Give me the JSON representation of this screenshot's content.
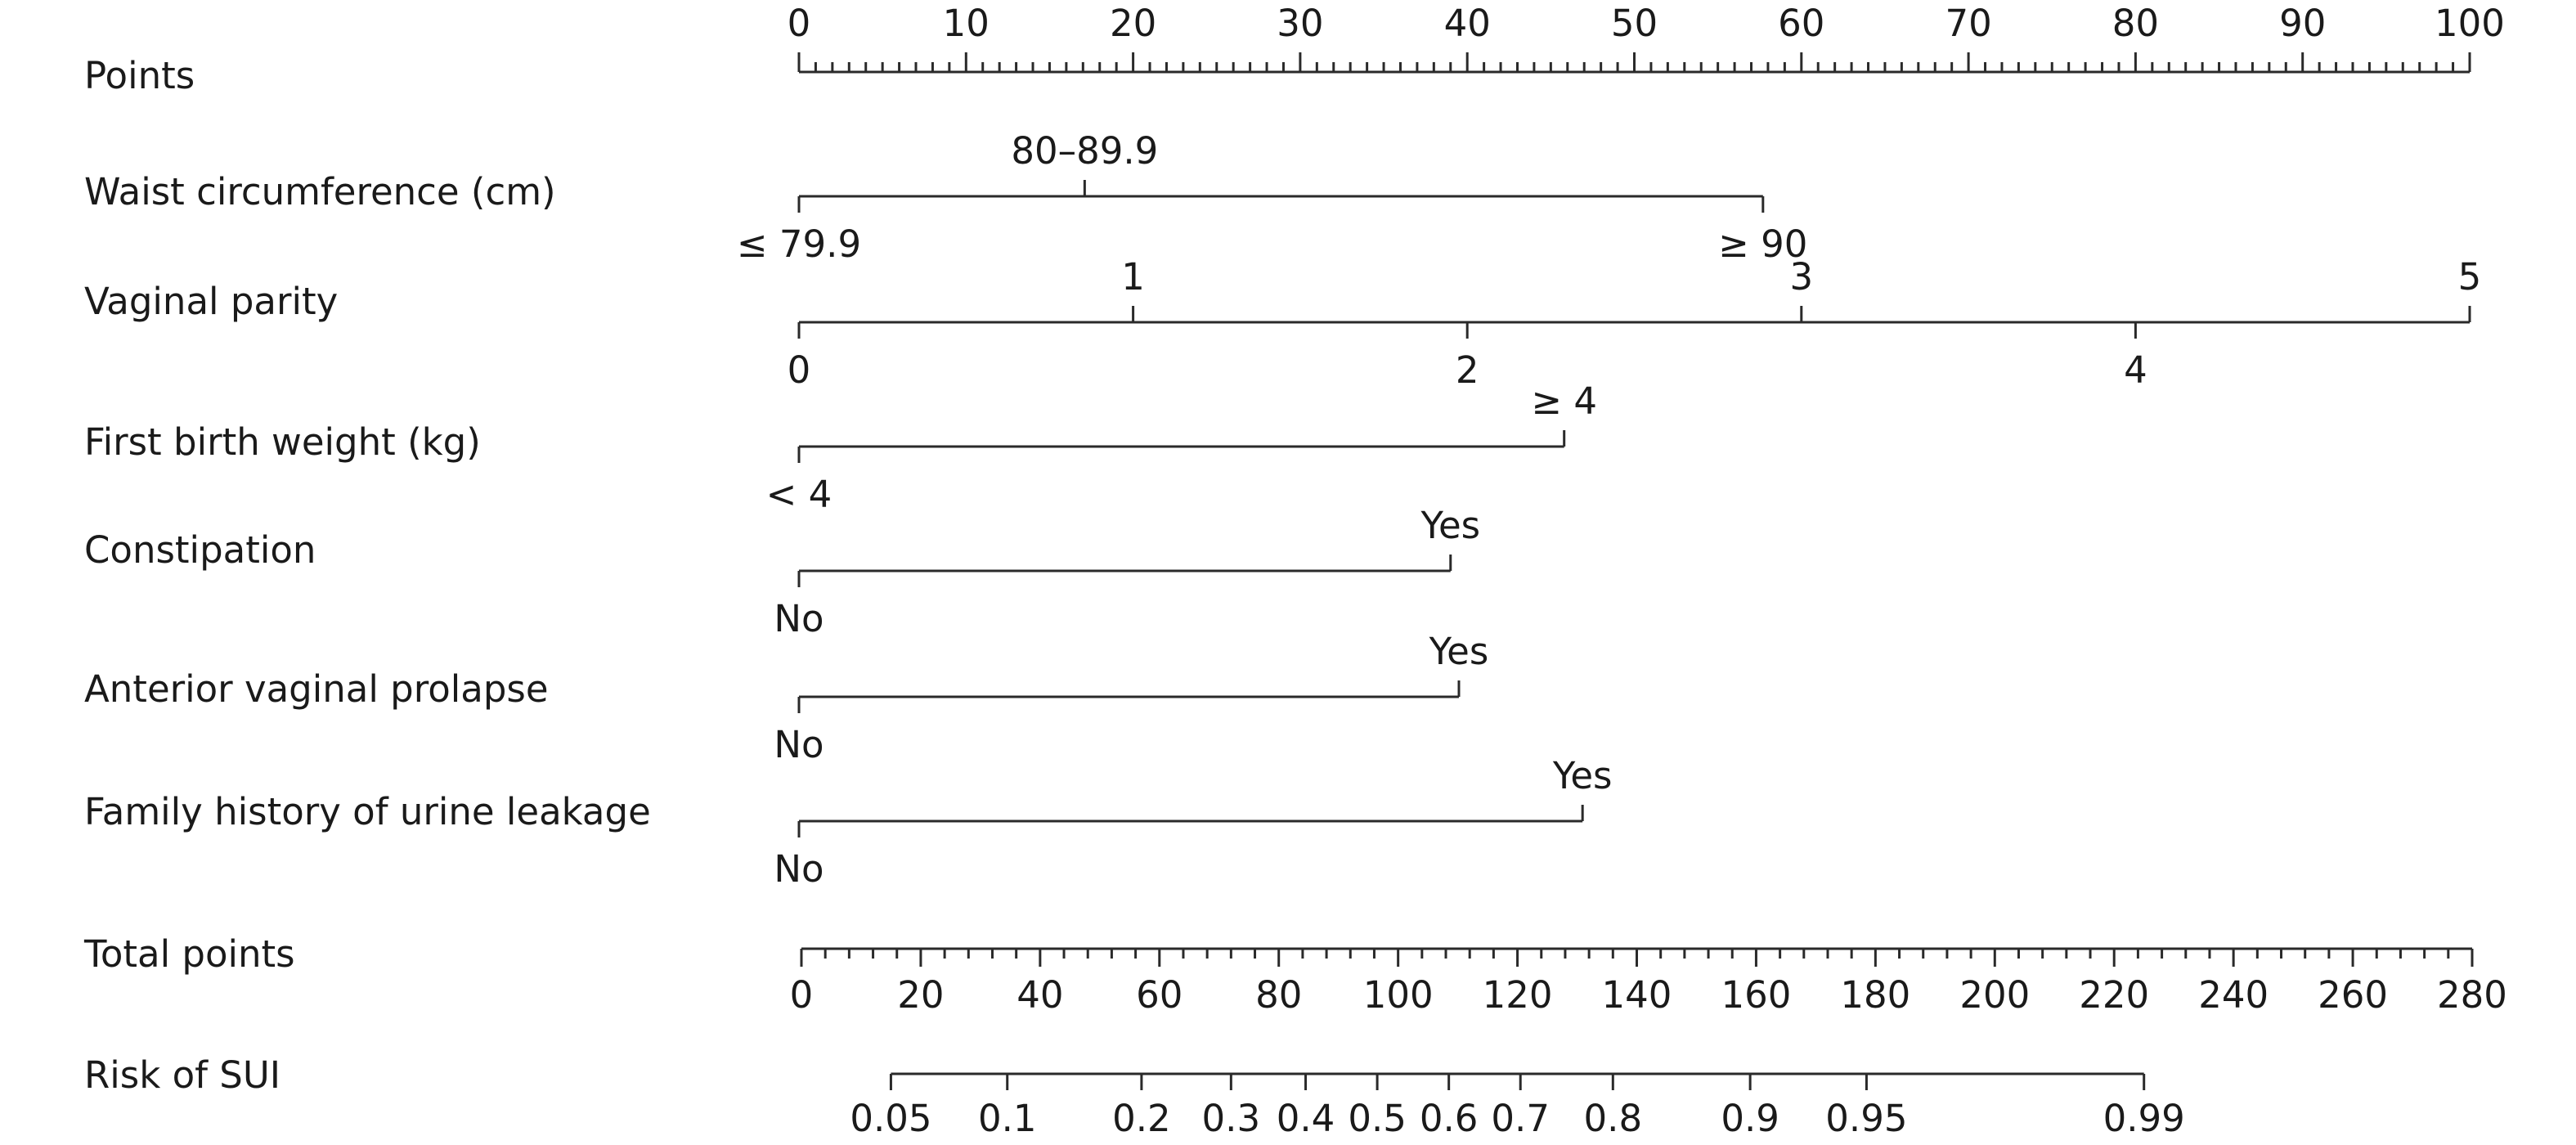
{
  "chart_data": {
    "type": "nomogram",
    "rows": [
      {
        "label": "Points",
        "kind": "points-scale",
        "major_ticks": [
          0,
          10,
          20,
          30,
          40,
          50,
          60,
          70,
          80,
          90,
          100
        ],
        "labels": [
          "0",
          "10",
          "20",
          "30",
          "40",
          "50",
          "60",
          "70",
          "80",
          "90",
          "100"
        ]
      },
      {
        "label": "Waist circumference (cm)",
        "kind": "factor",
        "levels": [
          {
            "label": "≤ 79.9",
            "points": 0,
            "side": "below"
          },
          {
            "label": "80–89.9",
            "points": 17.1,
            "side": "above"
          },
          {
            "label": "≥ 90",
            "points": 57.7,
            "side": "below"
          }
        ]
      },
      {
        "label": "Vaginal parity",
        "kind": "factor",
        "levels": [
          {
            "label": "0",
            "points": 0,
            "side": "below"
          },
          {
            "label": "1",
            "points": 20,
            "side": "above"
          },
          {
            "label": "2",
            "points": 40,
            "side": "below"
          },
          {
            "label": "3",
            "points": 60,
            "side": "above"
          },
          {
            "label": "4",
            "points": 80,
            "side": "below"
          },
          {
            "label": "5",
            "points": 100,
            "side": "above"
          }
        ]
      },
      {
        "label": "First birth weight (kg)",
        "kind": "factor",
        "levels": [
          {
            "label": "< 4",
            "points": 0,
            "side": "below"
          },
          {
            "label": "≥ 4",
            "points": 45.8,
            "side": "above"
          }
        ]
      },
      {
        "label": "Constipation",
        "kind": "factor",
        "levels": [
          {
            "label": "No",
            "points": 0,
            "side": "below"
          },
          {
            "label": "Yes",
            "points": 39,
            "side": "above"
          }
        ]
      },
      {
        "label": "Anterior vaginal prolapse",
        "kind": "factor",
        "levels": [
          {
            "label": "No",
            "points": 0,
            "side": "below"
          },
          {
            "label": "Yes",
            "points": 39.5,
            "side": "above"
          }
        ]
      },
      {
        "label": "Family history of urine leakage",
        "kind": "factor",
        "levels": [
          {
            "label": "No",
            "points": 0,
            "side": "below"
          },
          {
            "label": "Yes",
            "points": 46.9,
            "side": "above"
          }
        ]
      },
      {
        "label": "Total points",
        "kind": "total-scale",
        "range": [
          0,
          280
        ],
        "major_ticks": [
          0,
          20,
          40,
          60,
          80,
          100,
          120,
          140,
          160,
          180,
          200,
          220,
          240,
          260,
          280
        ],
        "labels": [
          "0",
          "20",
          "40",
          "60",
          "80",
          "100",
          "120",
          "140",
          "160",
          "180",
          "200",
          "220",
          "240",
          "260",
          "280"
        ]
      },
      {
        "label": "Risk of SUI",
        "kind": "risk-scale",
        "ticks": [
          {
            "label": "0.05",
            "total_points": 15
          },
          {
            "label": "0.1",
            "total_points": 34.5
          },
          {
            "label": "0.2",
            "total_points": 57
          },
          {
            "label": "0.3",
            "total_points": 72
          },
          {
            "label": "0.4",
            "total_points": 84.5
          },
          {
            "label": "0.5",
            "total_points": 96.5
          },
          {
            "label": "0.6",
            "total_points": 108.5
          },
          {
            "label": "0.7",
            "total_points": 120.5
          },
          {
            "label": "0.8",
            "total_points": 136
          },
          {
            "label": "0.9",
            "total_points": 159
          },
          {
            "label": "0.95",
            "total_points": 178.5
          },
          {
            "label": "0.99",
            "total_points": 225
          }
        ]
      }
    ]
  }
}
